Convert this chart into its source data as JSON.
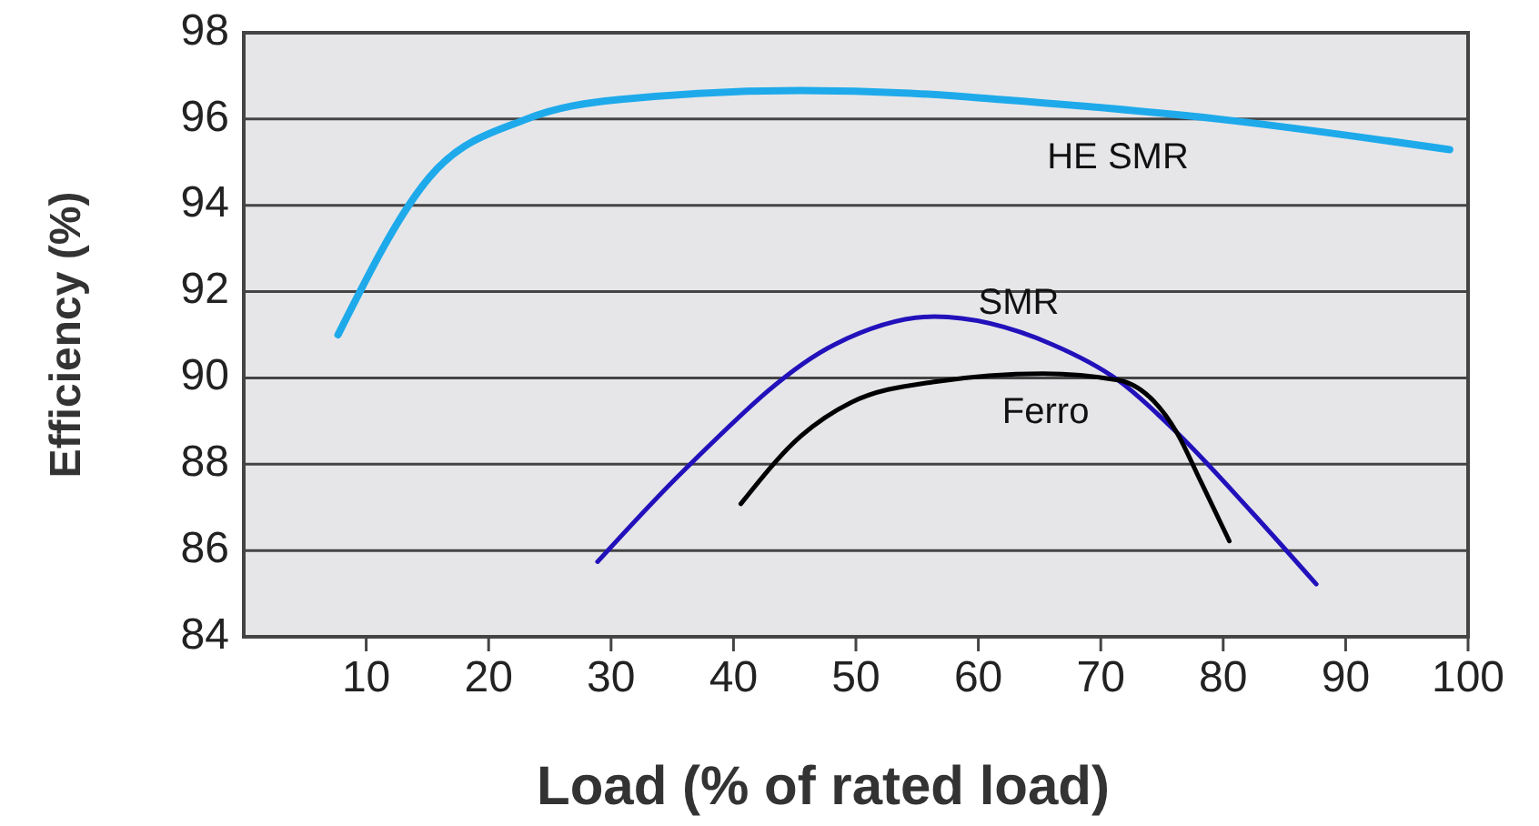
{
  "chart_data": {
    "type": "line",
    "xlabel": "Load (% of rated load)",
    "ylabel": "Efficiency (%)",
    "xlim": [
      0,
      100
    ],
    "xticks": [
      10,
      20,
      30,
      40,
      50,
      60,
      70,
      80,
      90,
      100
    ],
    "ylim": [
      84,
      98
    ],
    "yticks": [
      84,
      86,
      88,
      90,
      92,
      94,
      96,
      98
    ],
    "grid": "y",
    "legend": false,
    "marker": "none",
    "line_style": "solid",
    "series": [
      {
        "name": "HE SMR",
        "color": "#1eaaea",
        "x": [
          7.7,
          15.2,
          23.1,
          30.6,
          45.5,
          54.4,
          61.9,
          79.6,
          98.5
        ],
        "values": [
          91.0,
          94.66,
          96.0,
          96.45,
          96.66,
          96.6,
          96.45,
          96.0,
          95.29
        ]
      },
      {
        "name": "SMR",
        "color": "#2211bb",
        "x": [
          28.9,
          36.0,
          48.3,
          56.4,
          66.0,
          71.4,
          76.2,
          82.3,
          87.6
        ],
        "values": [
          85.74,
          87.87,
          90.78,
          91.42,
          90.78,
          89.95,
          88.74,
          86.9,
          85.22
        ]
      },
      {
        "name": "Ferro",
        "color": "#000000",
        "x": [
          40.6,
          45.5,
          49.6,
          56.4,
          65.3,
          71.4,
          76.2,
          78.2,
          80.5
        ],
        "values": [
          87.08,
          88.65,
          89.43,
          89.91,
          90.1,
          89.95,
          88.74,
          87.58,
          86.22
        ]
      }
    ]
  }
}
